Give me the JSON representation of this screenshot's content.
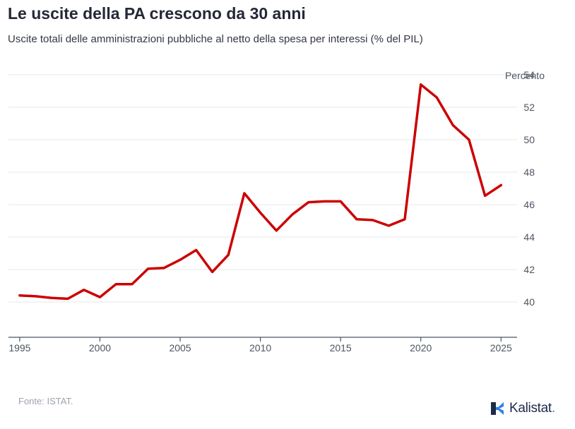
{
  "header": {
    "title": "Le uscite della PA crescono da 30 anni",
    "subtitle": "Uscite totali delle amministrazioni pubbliche al netto della spesa per interessi (% del PIL)"
  },
  "chart_data": {
    "type": "line",
    "ylabel": "Percento",
    "ylim": [
      38,
      54
    ],
    "xlim": [
      1994.3,
      2026
    ],
    "y_ticks": [
      40,
      42,
      44,
      46,
      48,
      50,
      52,
      54
    ],
    "x_ticks": [
      1995,
      2000,
      2005,
      2010,
      2015,
      2020,
      2025
    ],
    "grid": true,
    "series": [
      {
        "color": "#cc0000",
        "x": [
          1995,
          1996,
          1997,
          1998,
          1999,
          2000,
          2001,
          2002,
          2003,
          2004,
          2005,
          2006,
          2007,
          2008,
          2009,
          2010,
          2011,
          2012,
          2013,
          2014,
          2015,
          2016,
          2017,
          2018,
          2019,
          2020,
          2021,
          2022,
          2023,
          2024,
          2025
        ],
        "values": [
          40.4,
          40.35,
          40.25,
          40.2,
          40.75,
          40.3,
          41.1,
          41.1,
          42.05,
          42.1,
          42.6,
          43.2,
          41.85,
          42.9,
          46.7,
          45.5,
          44.4,
          45.4,
          46.15,
          46.2,
          46.2,
          45.1,
          45.05,
          44.7,
          45.1,
          53.4,
          52.6,
          50.9,
          50.0,
          46.55,
          47.2
        ]
      }
    ]
  },
  "footer": {
    "source": "Fonte: ISTAT.",
    "brand_name": "Kalistat",
    "brand_suffix": ".",
    "brand_icon": "kalistat-logo-icon"
  },
  "colors": {
    "line": "#cc0000",
    "grid": "#e5e7eb",
    "axis": "#4b5563",
    "tick_text": "#4b5563",
    "brand_dark": "#1e2a4a",
    "brand_accent": "#2f80ed"
  }
}
